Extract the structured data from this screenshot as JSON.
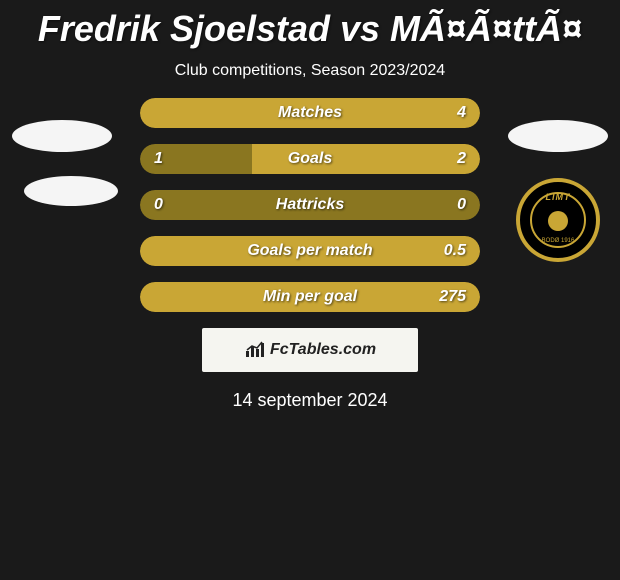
{
  "title": "Fredrik Sjoelstad vs MÃ¤Ã¤ttÃ¤",
  "subtitle": "Club competitions, Season 2023/2024",
  "date": "14 september 2024",
  "fctables_label": "FcTables.com",
  "club_badge": {
    "top_text": "LIMT",
    "bottom_text": "BODØ 1916"
  },
  "colors": {
    "left_fill": "#8a7620",
    "right_fill": "#c9a635",
    "background": "#1a1a1a",
    "text": "#ffffff"
  },
  "stats": [
    {
      "label": "Matches",
      "left_value": "",
      "right_value": "4",
      "left_pct": 0,
      "right_pct": 100,
      "full_color": "#c9a635"
    },
    {
      "label": "Goals",
      "left_value": "1",
      "right_value": "2",
      "left_pct": 33,
      "right_pct": 67,
      "full_color": null
    },
    {
      "label": "Hattricks",
      "left_value": "0",
      "right_value": "0",
      "left_pct": 0,
      "right_pct": 0,
      "full_color": "#8a7620"
    },
    {
      "label": "Goals per match",
      "left_value": "",
      "right_value": "0.5",
      "left_pct": 0,
      "right_pct": 100,
      "full_color": "#c9a635"
    },
    {
      "label": "Min per goal",
      "left_value": "",
      "right_value": "275",
      "left_pct": 0,
      "right_pct": 100,
      "full_color": "#c9a635"
    }
  ]
}
